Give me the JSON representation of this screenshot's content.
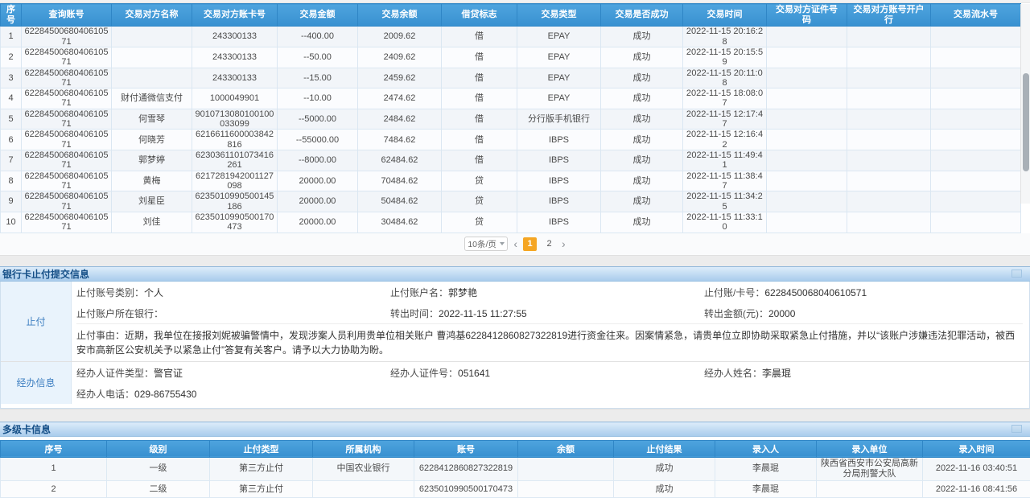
{
  "colors": {
    "accent_blue": "#3d9bd9",
    "active_page_orange": "#f5a623"
  },
  "transactions": {
    "columns": [
      "序号",
      "查询账号",
      "交易对方名称",
      "交易对方账卡号",
      "交易金额",
      "交易余额",
      "借贷标志",
      "交易类型",
      "交易是否成功",
      "交易时间",
      "交易对方证件号码",
      "交易对方账号开户行",
      "交易流水号"
    ],
    "rows": [
      [
        "1",
        "6228450068040610571",
        "",
        "243300133",
        "--400.00",
        "2009.62",
        "借",
        "EPAY",
        "成功",
        "2022-11-15 20:16:28",
        "",
        "",
        ""
      ],
      [
        "2",
        "6228450068040610571",
        "",
        "243300133",
        "--50.00",
        "2409.62",
        "借",
        "EPAY",
        "成功",
        "2022-11-15 20:15:59",
        "",
        "",
        ""
      ],
      [
        "3",
        "6228450068040610571",
        "",
        "243300133",
        "--15.00",
        "2459.62",
        "借",
        "EPAY",
        "成功",
        "2022-11-15 20:11:08",
        "",
        "",
        ""
      ],
      [
        "4",
        "6228450068040610571",
        "财付通微信支付",
        "1000049901",
        "--10.00",
        "2474.62",
        "借",
        "EPAY",
        "成功",
        "2022-11-15 18:08:07",
        "",
        "",
        ""
      ],
      [
        "5",
        "6228450068040610571",
        "何雪琴",
        "9010713080100100033099",
        "--5000.00",
        "2484.62",
        "借",
        "分行版手机银行",
        "成功",
        "2022-11-15 12:17:47",
        "",
        "",
        ""
      ],
      [
        "6",
        "6228450068040610571",
        "何晓芳",
        "6216611600003842816",
        "--55000.00",
        "7484.62",
        "借",
        "IBPS",
        "成功",
        "2022-11-15 12:16:42",
        "",
        "",
        ""
      ],
      [
        "7",
        "6228450068040610571",
        "郭梦婷",
        "6230361101073416261",
        "--8000.00",
        "62484.62",
        "借",
        "IBPS",
        "成功",
        "2022-11-15 11:49:41",
        "",
        "",
        ""
      ],
      [
        "8",
        "6228450068040610571",
        "黄梅",
        "6217281942001127098",
        "20000.00",
        "70484.62",
        "贷",
        "IBPS",
        "成功",
        "2022-11-15 11:38:47",
        "",
        "",
        ""
      ],
      [
        "9",
        "6228450068040610571",
        "刘星臣",
        "6235010990500145186",
        "20000.00",
        "50484.62",
        "贷",
        "IBPS",
        "成功",
        "2022-11-15 11:34:25",
        "",
        "",
        ""
      ],
      [
        "10",
        "6228450068040610571",
        "刘佳",
        "6235010990500170473",
        "20000.00",
        "30484.62",
        "贷",
        "IBPS",
        "成功",
        "2022-11-15 11:33:10",
        "",
        "",
        ""
      ]
    ]
  },
  "pagination": {
    "page_size": "10条/页",
    "prev_icon": "‹",
    "next_icon": "›",
    "pages": [
      "1",
      "2"
    ],
    "active_page": "1"
  },
  "stop_payment": {
    "title": "银行卡止付提交信息",
    "group1_label": "止付",
    "group2_label": "经办信息",
    "fields": {
      "acct_type": {
        "label": "止付账号类别：",
        "value": "个人"
      },
      "acct_name": {
        "label": "止付账户名：",
        "value": "郭梦艳"
      },
      "card_no": {
        "label": "止付账/卡号：",
        "value": "6228450068040610571"
      },
      "bank": {
        "label": "止付账户所在银行：",
        "value": ""
      },
      "transfer_time": {
        "label": "转出时间：",
        "value": "2022-11-15 11:27:55"
      },
      "amount": {
        "label": "转出金额(元)：",
        "value": "20000"
      },
      "reason": {
        "label": "止付事由：",
        "value": "近期，我单位在接报刘妮被骗警情中，发现涉案人员利用贵单位相关账户 曹鸿基6228412860827322819进行资金往来。因案情紧急，请贵单位立即协助采取紧急止付措施，并以“该账户涉嫌违法犯罪活动，被西安市高新区公安机关予以紧急止付”答复有关客户。请予以大力协助为盼。"
      },
      "officer_cert_type": {
        "label": "经办人证件类型：",
        "value": "警官证"
      },
      "officer_cert_no": {
        "label": "经办人证件号：",
        "value": "051641"
      },
      "officer_name": {
        "label": "经办人姓名：",
        "value": "李晨琨"
      },
      "officer_phone": {
        "label": "经办人电话：",
        "value": "029-86755430"
      }
    }
  },
  "multi_card": {
    "title": "多级卡信息",
    "columns": [
      "序号",
      "级别",
      "止付类型",
      "所属机构",
      "账号",
      "余额",
      "止付结果",
      "录入人",
      "录入单位",
      "录入时间"
    ],
    "rows": [
      [
        "1",
        "一级",
        "第三方止付",
        "中国农业银行",
        "6228412860827322819",
        "",
        "成功",
        "李晨琨",
        "陕西省西安市公安局高新分局刑警大队",
        "2022-11-16 03:40:51"
      ],
      [
        "2",
        "二级",
        "第三方止付",
        "",
        "6235010990500170473",
        "",
        "成功",
        "李晨琨",
        "",
        "2022-11-16 08:41:56"
      ]
    ]
  }
}
